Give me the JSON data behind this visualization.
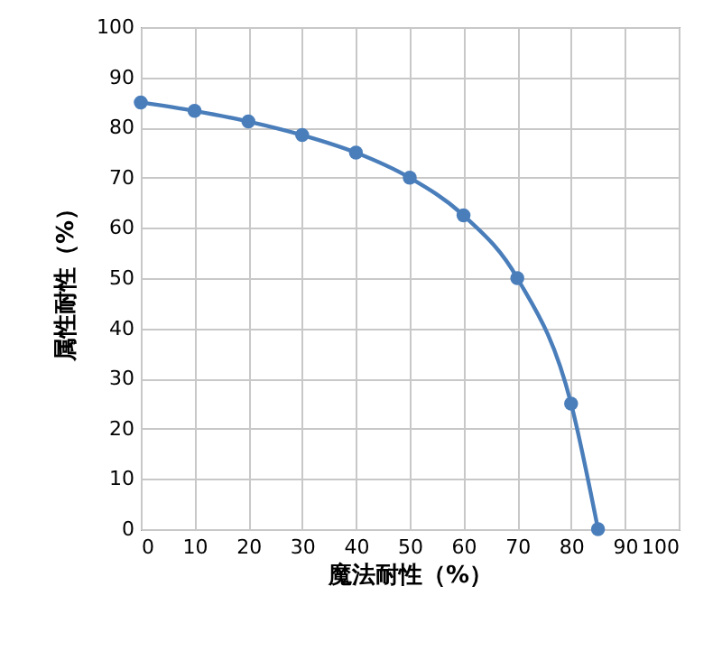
{
  "chart_data": {
    "type": "line",
    "xlabel": "魔法耐性（%）",
    "ylabel": "属性耐性（%）",
    "x": [
      0,
      10,
      20,
      30,
      40,
      50,
      60,
      70,
      80,
      85
    ],
    "series": [
      {
        "color": "#4a7ebb",
        "values": [
          85,
          83.3,
          81.2,
          78.5,
          75,
          70,
          62.5,
          50,
          25,
          0
        ]
      }
    ],
    "xlim": [
      0,
      100
    ],
    "xticks": [
      0,
      10,
      20,
      30,
      40,
      50,
      60,
      70,
      80,
      90,
      100
    ],
    "ylim": [
      0,
      100
    ],
    "yticks": [
      0,
      10,
      20,
      30,
      40,
      50,
      60,
      70,
      80,
      90,
      100
    ],
    "grid": true,
    "marker": "circle",
    "line_style": "solid"
  }
}
